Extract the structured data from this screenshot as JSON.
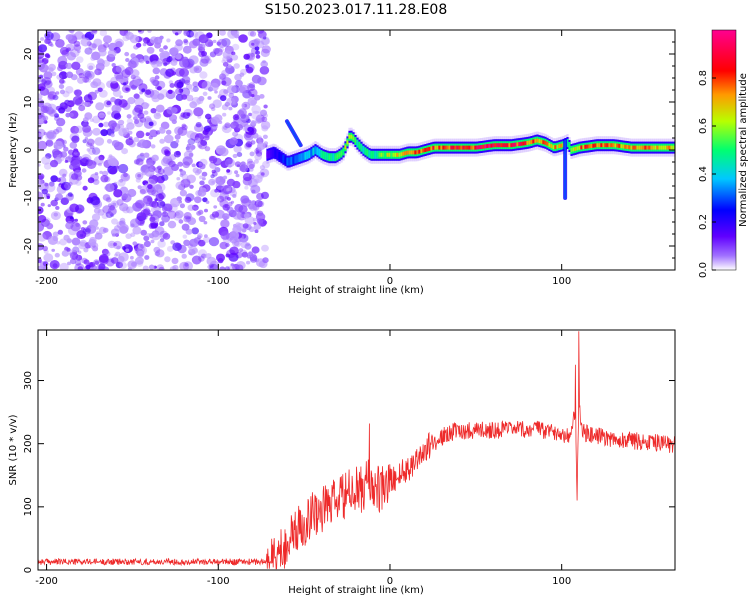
{
  "figure_title": "S150.2023.017.11.28.E08",
  "chart_data": [
    {
      "type": "heatmap",
      "title": "",
      "xlabel": "Height of straight line (km)",
      "ylabel": "Frequency (Hz)",
      "xlim": [
        -205,
        166
      ],
      "ylim": [
        -25,
        25
      ],
      "xticks": [
        -200,
        -100,
        0,
        100
      ],
      "yticks": [
        -20,
        -10,
        0,
        10,
        20
      ],
      "grid": false,
      "colorbar": {
        "label": "Normalized spectral amplitude",
        "range": [
          0,
          1
        ],
        "ticks": [
          0.0,
          0.2,
          0.4,
          0.6,
          0.8
        ],
        "colors": [
          "#ffffff",
          "#8000ff",
          "#0000ff",
          "#00c0ff",
          "#00ff60",
          "#c0ff00",
          "#ff9000",
          "#ff0000",
          "#ff0090"
        ]
      },
      "noise_region_x": [
        -205,
        -72
      ],
      "tonal_trace": {
        "x": [
          -72,
          -68,
          -64,
          -60,
          -56,
          -52,
          -48,
          -44,
          -40,
          -36,
          -32,
          -28,
          -26,
          -24,
          -22,
          -20,
          -16,
          -12,
          -8,
          -4,
          0,
          5,
          10,
          15,
          20,
          25,
          30,
          40,
          50,
          60,
          70,
          80,
          85,
          90,
          95,
          100,
          103,
          105,
          110,
          120,
          130,
          140,
          150,
          160,
          166
        ],
        "y": [
          -1.0,
          -0.5,
          -1.5,
          -2.5,
          -2.0,
          -1.5,
          -1.0,
          0.0,
          -1.0,
          -1.5,
          -1.5,
          -0.5,
          1.0,
          3.0,
          2.5,
          1.5,
          0.0,
          -1.0,
          -1.0,
          -1.0,
          -1.0,
          -1.0,
          -0.5,
          -0.5,
          0.0,
          0.5,
          0.5,
          0.5,
          0.5,
          1.0,
          1.0,
          1.5,
          2.0,
          1.5,
          0.5,
          1.0,
          1.5,
          0.0,
          0.5,
          1.0,
          1.0,
          0.5,
          0.5,
          0.5,
          0.5
        ],
        "amplitude": [
          0.15,
          0.2,
          0.25,
          0.3,
          0.3,
          0.35,
          0.35,
          0.4,
          0.45,
          0.45,
          0.5,
          0.55,
          0.6,
          0.6,
          0.55,
          0.5,
          0.45,
          0.45,
          0.5,
          0.55,
          0.6,
          0.65,
          0.7,
          0.75,
          0.8,
          0.8,
          0.75,
          0.8,
          0.85,
          0.9,
          0.85,
          0.8,
          0.75,
          0.7,
          0.7,
          0.65,
          0.4,
          0.55,
          0.75,
          0.8,
          0.75,
          0.7,
          0.75,
          0.7,
          0.65
        ]
      },
      "features": [
        {
          "x": [
            -60,
            -52
          ],
          "y": [
            6,
            1
          ],
          "amplitude": 0.3
        },
        {
          "x": [
            102,
            102
          ],
          "y": [
            2,
            -10
          ],
          "amplitude": 0.3
        }
      ]
    },
    {
      "type": "line",
      "title": "",
      "xlabel": "Height of straight line (km)",
      "ylabel": "SNR (10 * v/v)",
      "xlim": [
        -205,
        166
      ],
      "ylim": [
        0,
        380
      ],
      "xticks": [
        -200,
        -100,
        0,
        100
      ],
      "yticks": [
        0,
        100,
        200,
        300
      ],
      "grid": false,
      "color": "#ee2a2a",
      "series": [
        {
          "x": [
            -205,
            -150,
            -100,
            -80,
            -72,
            -65,
            -60,
            -55,
            -50,
            -45,
            -40,
            -35,
            -30,
            -25,
            -20,
            -15,
            -12,
            -10,
            -5,
            0,
            5,
            10,
            15,
            20,
            25,
            30,
            35,
            40,
            50,
            60,
            70,
            80,
            85,
            90,
            95,
            100,
            105,
            108,
            109,
            110,
            112,
            115,
            120,
            130,
            140,
            150,
            160,
            166
          ],
          "values": [
            13,
            13,
            13,
            13,
            13,
            25,
            45,
            60,
            75,
            90,
            95,
            105,
            110,
            120,
            125,
            130,
            145,
            130,
            125,
            140,
            150,
            160,
            175,
            190,
            200,
            210,
            218,
            220,
            222,
            222,
            222,
            222,
            225,
            218,
            220,
            215,
            215,
            250,
            120,
            260,
            220,
            215,
            212,
            208,
            205,
            203,
            200,
            198
          ]
        }
      ],
      "annotations": [
        {
          "x": -12,
          "y": 232
        },
        {
          "x": 110,
          "y": 378
        },
        {
          "x": 108,
          "y": 325
        },
        {
          "x": 109,
          "y": 110
        }
      ]
    }
  ]
}
